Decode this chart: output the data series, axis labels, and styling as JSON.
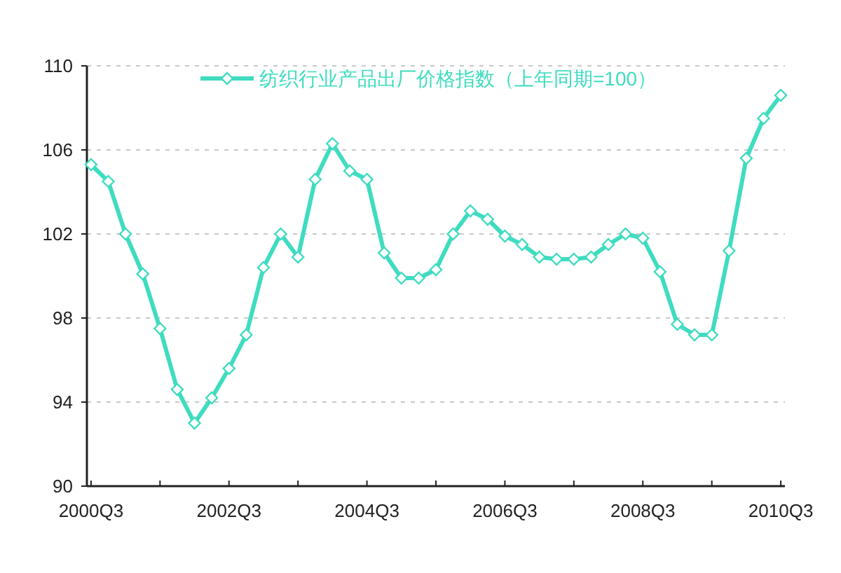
{
  "chart_data": {
    "type": "line",
    "categories": [
      "2000Q3",
      null,
      null,
      null,
      null,
      null,
      null,
      null,
      "2002Q3",
      null,
      null,
      null,
      null,
      null,
      null,
      null,
      "2004Q3",
      null,
      null,
      null,
      null,
      null,
      null,
      null,
      "2006Q3",
      null,
      null,
      null,
      null,
      null,
      null,
      null,
      "2008Q3",
      null,
      null,
      null,
      null,
      null,
      null,
      null,
      "2010Q3"
    ],
    "series": [
      {
        "name": "纺织行业产品出厂价格指数（上年同期=100）",
        "color": "#3fdcc0",
        "values": [
          105.3,
          104.5,
          102.0,
          100.1,
          97.5,
          94.6,
          93.0,
          94.2,
          95.6,
          97.2,
          100.4,
          102.0,
          100.9,
          104.6,
          106.3,
          105.0,
          104.6,
          101.1,
          99.9,
          99.9,
          100.3,
          102.0,
          103.1,
          102.7,
          101.9,
          101.5,
          100.9,
          100.8,
          100.8,
          100.9,
          101.5,
          102.0,
          101.8,
          100.2,
          97.7,
          97.2,
          97.2,
          101.2,
          105.6,
          107.5,
          108.6
        ]
      }
    ],
    "ylim": [
      90,
      110
    ],
    "yticks": [
      90,
      94,
      98,
      102,
      106,
      110
    ],
    "grid": "y",
    "legend": "top",
    "marker": "diamond",
    "line_style": "solid"
  }
}
